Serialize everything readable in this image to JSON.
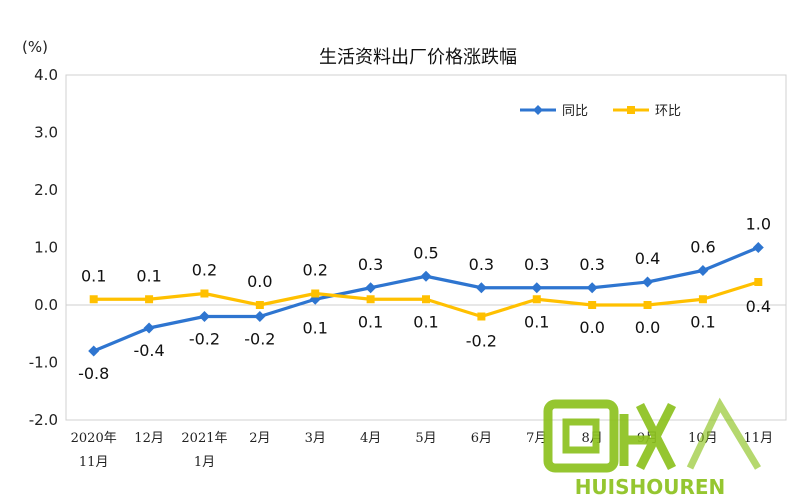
{
  "chart_data": {
    "type": "line",
    "title": "生活资料出厂价格涨跌幅",
    "ylabel": "(%)",
    "ylim": [
      -2.0,
      4.0
    ],
    "yticks": [
      "4.0",
      "3.0",
      "2.0",
      "1.0",
      "0.0",
      "-1.0",
      "-2.0"
    ],
    "categories": [
      [
        "2020年",
        "11月"
      ],
      [
        "12月"
      ],
      [
        "2021年",
        "1月"
      ],
      [
        "2月"
      ],
      [
        "3月"
      ],
      [
        "4月"
      ],
      [
        "5月"
      ],
      [
        "6月"
      ],
      [
        "7月"
      ],
      [
        "8月"
      ],
      [
        "9月"
      ],
      [
        "10月"
      ],
      [
        "11月"
      ]
    ],
    "series": [
      {
        "name": "同比",
        "color": "#2E75D0",
        "marker": "diamond",
        "values": [
          -0.8,
          -0.4,
          -0.2,
          -0.2,
          0.1,
          0.3,
          0.5,
          0.3,
          0.3,
          0.3,
          0.4,
          0.6,
          1.0
        ],
        "labels": [
          "-0.8",
          "-0.4",
          "-0.2",
          "-0.2",
          "0.1",
          "0.3",
          "0.5",
          "0.3",
          "0.3",
          "0.3",
          "0.4",
          "0.6",
          "1.0"
        ]
      },
      {
        "name": "环比",
        "color": "#FFC000",
        "marker": "square",
        "values": [
          0.1,
          0.1,
          0.2,
          0.0,
          0.2,
          0.1,
          0.1,
          -0.2,
          0.1,
          0.0,
          0.0,
          0.1,
          0.4
        ],
        "labels": [
          "0.1",
          "0.1",
          "0.2",
          "0.0",
          "0.2",
          "0.1",
          "0.1",
          "-0.2",
          "0.1",
          "0.0",
          "0.0",
          "0.1",
          "0.4"
        ]
      }
    ],
    "legend_position": "top-right",
    "grid": false
  },
  "watermark": {
    "text_cn": "回收",
    "text_en": "HUISHOUREN",
    "color": "#8DC21F"
  }
}
